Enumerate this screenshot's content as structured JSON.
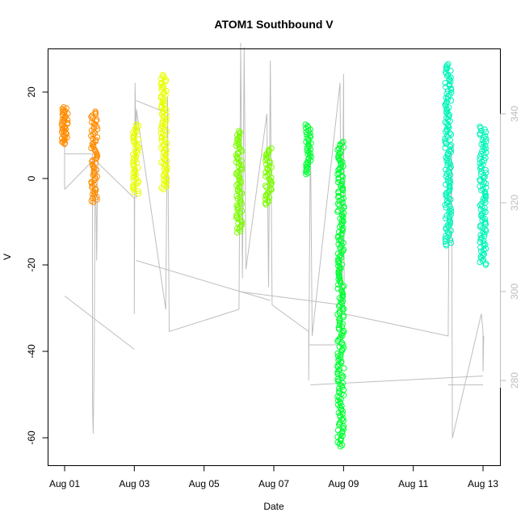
{
  "chart_data": {
    "type": "scatter",
    "title": "ATOM1 Southbound V",
    "xlabel": "Date",
    "ylabel": "V",
    "x_ticks": [
      "Aug 01",
      "Aug 03",
      "Aug 05",
      "Aug 07",
      "Aug 09",
      "Aug 11",
      "Aug 13"
    ],
    "y_ticks": [
      "20",
      "0",
      "-20",
      "-40",
      "-60"
    ],
    "y2_ticks": [
      "340",
      "320",
      "300",
      "280"
    ],
    "xlim_days": [
      1,
      13.5
    ],
    "ylim": [
      -66,
      30
    ],
    "y2lim": [
      262,
      352
    ],
    "colors": {
      "secondary_series": "#bebebe",
      "axis_right": "#bdbdbd"
    },
    "series": [
      {
        "color": "#FF8C00",
        "clusters": [
          {
            "day": 1.0,
            "min": 8,
            "max": 16.5
          },
          {
            "day": 1.85,
            "min": -5.5,
            "max": 15.5
          }
        ]
      },
      {
        "color": "#E8FF00",
        "clusters": [
          {
            "day": 3.05,
            "min": -3.5,
            "max": 12.5
          },
          {
            "day": 3.85,
            "min": -2.5,
            "max": 24
          }
        ]
      },
      {
        "color": "#7CFC00",
        "clusters": [
          {
            "day": 6.0,
            "min": -12.5,
            "max": 11
          },
          {
            "day": 6.85,
            "min": -6,
            "max": 7
          }
        ]
      },
      {
        "color": "#00FF33",
        "clusters": [
          {
            "day": 8.0,
            "min": 1,
            "max": 12.5
          },
          {
            "day": 8.92,
            "min": -62,
            "max": 8.5
          }
        ]
      },
      {
        "color": "#00F5B8",
        "clusters": [
          {
            "day": 12.0,
            "min": -15.5,
            "max": 26.5
          },
          {
            "day": 13.0,
            "min": -20,
            "max": 12
          }
        ]
      }
    ],
    "secondary": {
      "name": "",
      "axis": "right",
      "path": [
        [
          1.0,
          336
        ],
        [
          1.0,
          323
        ],
        [
          1.0,
          331
        ],
        [
          1.8,
          331
        ],
        [
          1.8,
          275
        ],
        [
          1.82,
          268
        ],
        [
          1.85,
          286
        ],
        [
          1.87,
          323
        ],
        [
          1.9,
          320
        ],
        [
          1.92,
          307
        ],
        [
          1.95,
          329
        ],
        [
          3.0,
          321
        ],
        [
          3.0,
          295
        ],
        [
          3.02,
          347
        ],
        [
          3.05,
          332
        ],
        [
          3.05,
          321
        ],
        [
          3.06,
          341
        ],
        [
          3.9,
          296
        ],
        [
          3.95,
          344
        ],
        [
          4.0,
          291
        ],
        [
          6.0,
          296
        ],
        [
          6.05,
          356
        ],
        [
          6.1,
          303
        ],
        [
          6.15,
          355
        ],
        [
          6.2,
          305
        ],
        [
          6.8,
          340
        ],
        [
          6.85,
          301
        ],
        [
          6.9,
          352
        ],
        [
          6.95,
          297
        ],
        [
          8.0,
          291
        ],
        [
          8.0,
          280
        ],
        [
          8.05,
          337
        ],
        [
          8.1,
          290
        ],
        [
          8.9,
          347
        ],
        [
          8.95,
          290
        ],
        [
          9.0,
          349
        ],
        [
          9.02,
          295
        ],
        [
          12.0,
          290
        ],
        [
          12.02,
          312
        ],
        [
          12.05,
          311
        ],
        [
          12.1,
          333
        ],
        [
          12.12,
          267
        ],
        [
          12.95,
          295
        ],
        [
          13.0,
          291
        ],
        [
          13.0,
          282
        ],
        [
          13.02,
          290
        ]
      ],
      "links": [
        [
          [
            1.0,
            323
          ],
          [
            2.0,
            331
          ]
        ],
        [
          [
            1.0,
            299
          ],
          [
            3.0,
            287
          ]
        ],
        [
          [
            3.05,
            343
          ],
          [
            4.0,
            340
          ]
        ],
        [
          [
            3.05,
            307
          ],
          [
            6.9,
            298
          ]
        ],
        [
          [
            6.0,
            300
          ],
          [
            8.95,
            297
          ]
        ],
        [
          [
            8.0,
            288
          ],
          [
            8.95,
            288
          ]
        ],
        [
          [
            8.05,
            279
          ],
          [
            13.0,
            281
          ]
        ],
        [
          [
            12.0,
            279
          ],
          [
            13.0,
            279
          ]
        ]
      ]
    }
  }
}
